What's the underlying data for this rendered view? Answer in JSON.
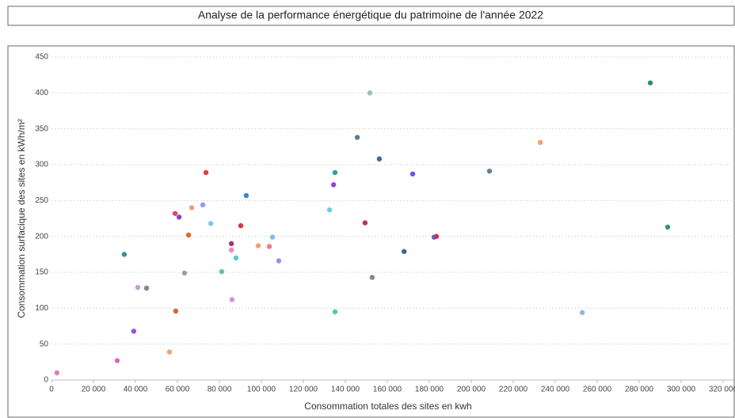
{
  "chart_data": {
    "type": "scatter",
    "title": "Analyse de la performance énergétique du patrimoine de l'année 2022",
    "x_label": "Consommation totales des sites en kwh",
    "y_label": "Consommation surfacique des sites en kWh/m²",
    "x": [
      2600,
      31300,
      39200,
      41100,
      45300,
      34700,
      56200,
      59200,
      58900,
      60800,
      63400,
      65300,
      66800,
      72100,
      73600,
      75900,
      81100,
      85700,
      85700,
      86000,
      87900,
      90200,
      92800,
      98500,
      103800,
      105300,
      108300,
      132500,
      134400,
      135100,
      135100,
      145700,
      149400,
      151700,
      152800,
      156200,
      168000,
      172100,
      182300,
      183400,
      208700,
      232900,
      252900,
      285300,
      293600
    ],
    "values": [
      10,
      27,
      68,
      129,
      128,
      175,
      39,
      96,
      232,
      227,
      149,
      202,
      240,
      244,
      289,
      218,
      151,
      190,
      181,
      112,
      170,
      215,
      257,
      187,
      186,
      199,
      166,
      237,
      272,
      289,
      95,
      338,
      219,
      400,
      143,
      308,
      179,
      287,
      199,
      200,
      291,
      331,
      94,
      414,
      213
    ],
    "colors": [
      "#e07bc6",
      "#d46fb4",
      "#9b4fdb",
      "#c897e0",
      "#7a8a9a",
      "#3d8f95",
      "#f0a07a",
      "#e0642a",
      "#e04858",
      "#8a3fcf",
      "#9aa0a0",
      "#e0682e",
      "#f29a7a",
      "#8c9cf0",
      "#d8403e",
      "#8fc0e8",
      "#6cc48a",
      "#a0337a",
      "#f08aa8",
      "#c89ae0",
      "#5ac8cc",
      "#d43848",
      "#3a8ac8",
      "#f4a070",
      "#f07890",
      "#8ab8e8",
      "#a08cf0",
      "#6ad0e0",
      "#9a40d8",
      "#2aa0a0",
      "#5ac89a",
      "#5a7a90",
      "#b83070",
      "#9ac0b8",
      "#7a8aa0",
      "#3a6a9a",
      "#3a6a8a",
      "#5a60d8",
      "#4a70d0",
      "#d82858",
      "#6a8090",
      "#f4a068",
      "#8ab8e0",
      "#2a9070",
      "#2a9a70"
    ],
    "xlim": [
      0,
      320000
    ],
    "xticks": [
      0,
      {
        "value": 20000,
        "label": "20 000"
      },
      {
        "value": 40000,
        "label": "40 000"
      },
      {
        "value": 60000,
        "label": "60 000"
      },
      {
        "value": 80000,
        "label": "80 000"
      },
      {
        "value": 100000,
        "label": "100 000"
      },
      {
        "value": 120000,
        "label": "120 000"
      },
      {
        "value": 140000,
        "label": "140 000"
      },
      {
        "value": 160000,
        "label": "160 000"
      },
      {
        "value": 180000,
        "label": "180 000"
      },
      {
        "value": 200000,
        "label": "200 000"
      },
      {
        "value": 220000,
        "label": "220 000"
      },
      {
        "value": 240000,
        "label": "240 000"
      },
      {
        "value": 260000,
        "label": "260 000"
      },
      {
        "value": 280000,
        "label": "280 000"
      },
      {
        "value": 300000,
        "label": "300 000"
      },
      {
        "value": 320000,
        "label": "320 000"
      }
    ],
    "ylim": [
      0,
      450
    ],
    "yticks": [
      0,
      50,
      100,
      150,
      200,
      250,
      300,
      350,
      400,
      450
    ],
    "grid": true
  }
}
